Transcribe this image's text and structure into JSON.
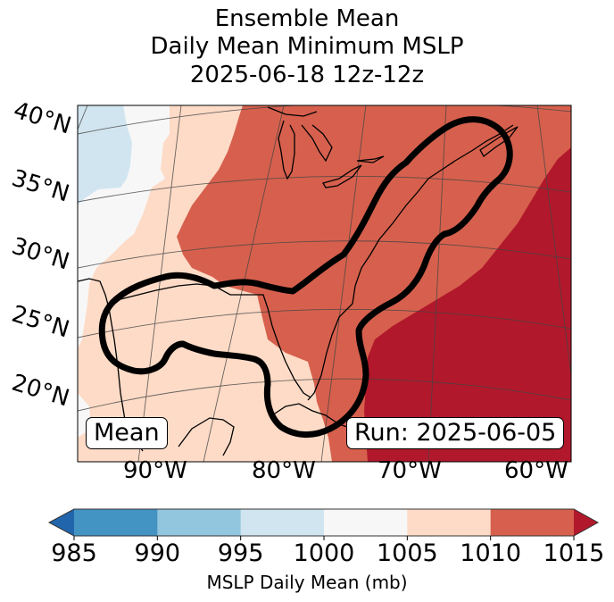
{
  "chart_data": {
    "type": "heatmap",
    "title": [
      "Ensemble Mean",
      "Daily Mean Minimum MSLP",
      "2025-06-18 12z-12z"
    ],
    "projection": "conic map, Eastern US / Gulf of Mexico / Western Atlantic",
    "lat_ticks": [
      "40°N",
      "35°N",
      "30°N",
      "25°N",
      "20°N"
    ],
    "lon_ticks": [
      "90°W",
      "80°W",
      "70°W",
      "60°W"
    ],
    "lat_range": [
      15,
      42
    ],
    "lon_range": [
      -97,
      -58
    ],
    "field": "MSLP Daily Mean (mb)",
    "regions": [
      {
        "name": "995-1000",
        "description": "far northwest (plains)",
        "range": [
          995,
          1000
        ]
      },
      {
        "name": "1000-1005",
        "description": "west / southwest margin",
        "range": [
          1000,
          1005
        ]
      },
      {
        "name": "1005-1010",
        "description": "Mississippi valley, western Gulf of Mexico",
        "range": [
          1005,
          1010
        ]
      },
      {
        "name": "1010-1015",
        "description": "Great Lakes, East Coast, Florida, eastern Gulf",
        "range": [
          1010,
          1015
        ]
      },
      {
        "name": ">1015",
        "description": "Western Atlantic (Bermuda high)",
        "range": [
          1015,
          1020
        ]
      }
    ],
    "annotations": {
      "mean_label": "Mean",
      "run_label": "Run: 2025-06-05",
      "contour": "thick black outline enclosing Gulf coast, Florida and the US East Coast to Nova Scotia"
    },
    "colorbar": {
      "label": "MSLP Daily Mean (mb)",
      "ticks": [
        "985",
        "990",
        "995",
        "1000",
        "1005",
        "1010",
        "1015"
      ],
      "bounds": [
        985,
        990,
        995,
        1000,
        1005,
        1010,
        1015
      ],
      "extend": "both",
      "colors": [
        "#2166ac",
        "#4393c3",
        "#92c5de",
        "#d1e5f0",
        "#f7f7f7",
        "#fddbc7",
        "#d6604d",
        "#b2182b"
      ]
    }
  },
  "colors": {
    "c995": "#d1e5f0",
    "c1000": "#f7f7f7",
    "c1005": "#fddbc7",
    "c1010": "#d6604d",
    "c1015": "#b2182b",
    "under": "#2166ac",
    "over": "#b2182b"
  }
}
